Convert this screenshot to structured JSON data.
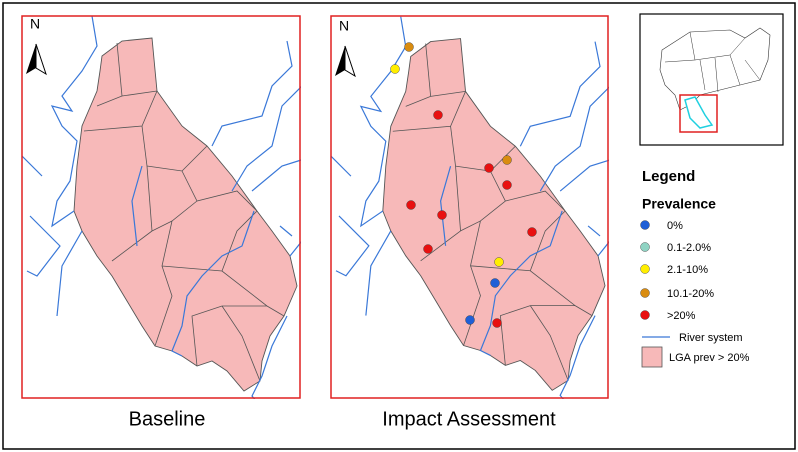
{
  "panels": [
    {
      "north": "N",
      "label": "Baseline"
    },
    {
      "north": "N",
      "label": "Impact Assessment"
    }
  ],
  "legend": {
    "title": "Legend",
    "subtitle": "Prevalence",
    "items": [
      {
        "label": "0%",
        "color": "#1f5fd6"
      },
      {
        "label": "0.1-2.0%",
        "color": "#8fd3c3"
      },
      {
        "label": "2.1-10%",
        "color": "#ffee00"
      },
      {
        "label": "10.1-20%",
        "color": "#d98c10"
      },
      {
        "label": ">20%",
        "color": "#e81010"
      }
    ],
    "river": "River system",
    "lga": "LGA prev > 20%"
  }
}
